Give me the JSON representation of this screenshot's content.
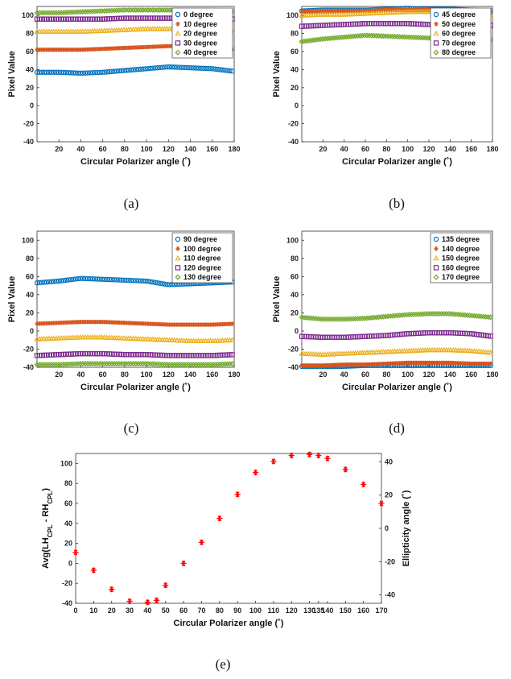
{
  "chart_data": [
    {
      "type": "scatter",
      "xlabel": "Circular Polarizer angle (˚)",
      "ylabel": "Pixel Value",
      "caption": "(a)",
      "xlim": [
        0,
        180
      ],
      "ylim": [
        -40,
        110
      ],
      "xticks": [
        20,
        40,
        60,
        80,
        100,
        120,
        140,
        160,
        180
      ],
      "yticks": [
        -40,
        -20,
        0,
        20,
        40,
        60,
        80,
        100
      ],
      "legend_position": "top-right",
      "series": [
        {
          "name": "0 degree",
          "marker": "circle",
          "color": "#0072BD",
          "x": [
            0,
            20,
            40,
            60,
            80,
            100,
            120,
            140,
            160,
            180
          ],
          "values": [
            37,
            37,
            36,
            37,
            39,
            41,
            43,
            42,
            41,
            38
          ]
        },
        {
          "name": "10 degree",
          "marker": "star",
          "color": "#D95319",
          "x": [
            0,
            20,
            40,
            60,
            80,
            100,
            120,
            140,
            160,
            180
          ],
          "values": [
            62,
            62,
            62,
            63,
            64,
            65,
            66,
            66,
            65,
            62
          ]
        },
        {
          "name": "20 degree",
          "marker": "triangle",
          "color": "#EDB120",
          "x": [
            0,
            20,
            40,
            60,
            80,
            100,
            120,
            140,
            160,
            180
          ],
          "values": [
            82,
            82,
            82,
            83,
            84,
            85,
            85,
            86,
            85,
            82
          ]
        },
        {
          "name": "30 degree",
          "marker": "square",
          "color": "#7E2F8E",
          "x": [
            0,
            20,
            40,
            60,
            80,
            100,
            120,
            140,
            160,
            180
          ],
          "values": [
            96,
            96,
            96,
            96,
            97,
            97,
            97,
            97,
            97,
            96
          ]
        },
        {
          "name": "40 degree",
          "marker": "diamond",
          "color": "#77AC30",
          "x": [
            0,
            20,
            40,
            60,
            80,
            100,
            120,
            140,
            160,
            180
          ],
          "values": [
            103,
            103,
            104,
            105,
            106,
            106,
            106,
            106,
            106,
            104
          ]
        }
      ]
    },
    {
      "type": "scatter",
      "xlabel": "Circular Polarizer angle (˚)",
      "ylabel": "Pixel Value",
      "caption": "(b)",
      "xlim": [
        0,
        180
      ],
      "ylim": [
        -40,
        110
      ],
      "xticks": [
        20,
        40,
        60,
        80,
        100,
        120,
        140,
        160,
        180
      ],
      "yticks": [
        -40,
        -20,
        0,
        20,
        40,
        60,
        80,
        100
      ],
      "legend_position": "top-right",
      "series": [
        {
          "name": "45 degree",
          "marker": "circle",
          "color": "#0072BD",
          "x": [
            0,
            20,
            40,
            60,
            80,
            100,
            120,
            140,
            160,
            180
          ],
          "values": [
            105,
            106,
            106,
            106,
            107,
            108,
            107,
            107,
            106,
            105
          ]
        },
        {
          "name": "50 degree",
          "marker": "star",
          "color": "#D95319",
          "x": [
            0,
            20,
            40,
            60,
            80,
            100,
            120,
            140,
            160,
            180
          ],
          "values": [
            104,
            104,
            105,
            105,
            106,
            106,
            106,
            105,
            104,
            103
          ]
        },
        {
          "name": "60 degree",
          "marker": "triangle",
          "color": "#EDB120",
          "x": [
            0,
            20,
            40,
            60,
            80,
            100,
            120,
            140,
            160,
            180
          ],
          "values": [
            100,
            101,
            101,
            102,
            103,
            104,
            104,
            104,
            103,
            101
          ]
        },
        {
          "name": "70 degree",
          "marker": "square",
          "color": "#7E2F8E",
          "x": [
            0,
            20,
            40,
            60,
            80,
            100,
            120,
            140,
            160,
            180
          ],
          "values": [
            88,
            89,
            90,
            91,
            91,
            91,
            90,
            90,
            90,
            89
          ]
        },
        {
          "name": "80 degree",
          "marker": "diamond",
          "color": "#77AC30",
          "x": [
            0,
            20,
            40,
            60,
            80,
            100,
            120,
            140,
            160,
            180
          ],
          "values": [
            71,
            74,
            76,
            78,
            77,
            76,
            75,
            74,
            73,
            73
          ]
        }
      ]
    },
    {
      "type": "scatter",
      "xlabel": "Circular Polarizer angle (˚)",
      "ylabel": "Pixel Value",
      "caption": "(c)",
      "xlim": [
        0,
        180
      ],
      "ylim": [
        -40,
        110
      ],
      "xticks": [
        20,
        40,
        60,
        80,
        100,
        120,
        140,
        160,
        180
      ],
      "yticks": [
        -40,
        -20,
        0,
        20,
        40,
        60,
        80,
        100
      ],
      "legend_position": "top-right",
      "series": [
        {
          "name": "90 degree",
          "marker": "circle",
          "color": "#0072BD",
          "x": [
            0,
            20,
            40,
            60,
            80,
            100,
            120,
            140,
            160,
            180
          ],
          "values": [
            53,
            55,
            58,
            57,
            56,
            55,
            51,
            52,
            53,
            54
          ]
        },
        {
          "name": "100 degree",
          "marker": "star",
          "color": "#D95319",
          "x": [
            0,
            20,
            40,
            60,
            80,
            100,
            120,
            140,
            160,
            180
          ],
          "values": [
            8,
            9,
            10,
            10,
            9,
            8,
            7,
            7,
            7,
            8
          ]
        },
        {
          "name": "110 degree",
          "marker": "triangle",
          "color": "#EDB120",
          "x": [
            0,
            20,
            40,
            60,
            80,
            100,
            120,
            140,
            160,
            180
          ],
          "values": [
            -9,
            -8,
            -7,
            -7,
            -8,
            -9,
            -10,
            -11,
            -11,
            -10
          ]
        },
        {
          "name": "120 degree",
          "marker": "square",
          "color": "#7E2F8E",
          "x": [
            0,
            20,
            40,
            60,
            80,
            100,
            120,
            140,
            160,
            180
          ],
          "values": [
            -27,
            -26,
            -25,
            -25,
            -26,
            -26,
            -27,
            -27,
            -27,
            -26
          ]
        },
        {
          "name": "130 degree",
          "marker": "diamond",
          "color": "#77AC30",
          "x": [
            0,
            20,
            40,
            60,
            80,
            100,
            120,
            140,
            160,
            180
          ],
          "values": [
            -37,
            -37,
            -36,
            -36,
            -36,
            -36,
            -37,
            -37,
            -37,
            -36
          ]
        }
      ]
    },
    {
      "type": "scatter",
      "xlabel": "Circular Polarizer angle (˚)",
      "ylabel": "Pixel Value",
      "caption": "(d)",
      "xlim": [
        0,
        180
      ],
      "ylim": [
        -40,
        110
      ],
      "xticks": [
        20,
        40,
        60,
        80,
        100,
        120,
        140,
        160,
        180
      ],
      "yticks": [
        -40,
        -20,
        0,
        20,
        40,
        60,
        80,
        100
      ],
      "legend_position": "top-right",
      "series": [
        {
          "name": "135 degree",
          "marker": "circle",
          "color": "#0072BD",
          "x": [
            0,
            20,
            40,
            60,
            80,
            100,
            120,
            140,
            160,
            180
          ],
          "values": [
            -39,
            -39,
            -39,
            -38,
            -38,
            -38,
            -38,
            -38,
            -38,
            -38
          ]
        },
        {
          "name": "140 degree",
          "marker": "star",
          "color": "#D95319",
          "x": [
            0,
            20,
            40,
            60,
            80,
            100,
            120,
            140,
            160,
            180
          ],
          "values": [
            -38,
            -38,
            -37,
            -37,
            -36,
            -35,
            -35,
            -35,
            -36,
            -36
          ]
        },
        {
          "name": "150 degree",
          "marker": "triangle",
          "color": "#EDB120",
          "x": [
            0,
            20,
            40,
            60,
            80,
            100,
            120,
            140,
            160,
            180
          ],
          "values": [
            -25,
            -26,
            -25,
            -24,
            -23,
            -22,
            -21,
            -21,
            -22,
            -24
          ]
        },
        {
          "name": "160 degree",
          "marker": "square",
          "color": "#7E2F8E",
          "x": [
            0,
            20,
            40,
            60,
            80,
            100,
            120,
            140,
            160,
            180
          ],
          "values": [
            -6,
            -7,
            -7,
            -6,
            -5,
            -3,
            -2,
            -2,
            -3,
            -6
          ]
        },
        {
          "name": "170 degree",
          "marker": "diamond",
          "color": "#77AC30",
          "x": [
            0,
            20,
            40,
            60,
            80,
            100,
            120,
            140,
            160,
            180
          ],
          "values": [
            15,
            13,
            13,
            14,
            16,
            18,
            19,
            19,
            17,
            15
          ]
        }
      ]
    },
    {
      "type": "scatter",
      "xlabel": "Circular Polarizer angle (˚)",
      "ylabel": "Avg(LH_CPL - RH_CPL)",
      "y2label": "Ellipticity angle (˚)",
      "caption": "(e)",
      "xlim": [
        0,
        170
      ],
      "ylim": [
        -40,
        110
      ],
      "y2lim": [
        -45,
        45
      ],
      "xticks": [
        0,
        10,
        20,
        30,
        40,
        50,
        60,
        70,
        80,
        90,
        100,
        110,
        120,
        130,
        135,
        140,
        150,
        160,
        170
      ],
      "xticklabels": [
        "0",
        "10",
        "20",
        "30",
        "40",
        "50",
        "60",
        "70",
        "80",
        "90",
        "100",
        "110",
        "120",
        "130",
        "135",
        "140",
        "150",
        "160",
        "170"
      ],
      "yticks": [
        -40,
        -20,
        0,
        20,
        40,
        60,
        80,
        100
      ],
      "y2ticks": [
        -40,
        -20,
        0,
        20,
        40
      ],
      "series": [
        {
          "name": "",
          "marker": "asterisk",
          "color": "#FF0000",
          "x": [
            0,
            10,
            20,
            30,
            40,
            45,
            50,
            60,
            70,
            80,
            90,
            100,
            110,
            120,
            130,
            135,
            140,
            150,
            160,
            170
          ],
          "values": [
            11,
            -7,
            -26,
            -38,
            -39,
            -37,
            -22,
            0,
            21,
            45,
            69,
            91,
            102,
            108,
            109,
            108,
            105,
            94,
            79,
            60
          ]
        }
      ]
    }
  ],
  "panels": [
    {
      "caption": "(a)",
      "xlabel": "Circular Polarizer angle (˚)",
      "ylabel": "Pixel Value",
      "legend": [
        "0 degree",
        "10 degree",
        "20 degree",
        "30 degree",
        "40 degree"
      ]
    },
    {
      "caption": "(b)",
      "xlabel": "Circular Polarizer angle (˚)",
      "ylabel": "Pixel Value",
      "legend": [
        "45 degree",
        "50 degree",
        "60 degree",
        "70 degree",
        "80 degree"
      ]
    },
    {
      "caption": "(c)",
      "xlabel": "Circular Polarizer angle (˚)",
      "ylabel": "Pixel Value",
      "legend": [
        "90 degree",
        "100 degree",
        "110 degree",
        "120 degree",
        "130 degree"
      ]
    },
    {
      "caption": "(d)",
      "xlabel": "Circular Polarizer angle (˚)",
      "ylabel": "Pixel Value",
      "legend": [
        "135 degree",
        "140 degree",
        "150 degree",
        "160 degree",
        "170 degree"
      ]
    },
    {
      "caption": "(e)",
      "xlabel": "Circular Polarizer angle (˚)",
      "ylabel_main": "Avg(LH",
      "ylabel_sub1": "CPL",
      "ylabel_mid": " - RH",
      "ylabel_sub2": "CPL",
      "ylabel_end": ")",
      "y2label": "Ellipticity angle (˚)"
    }
  ]
}
